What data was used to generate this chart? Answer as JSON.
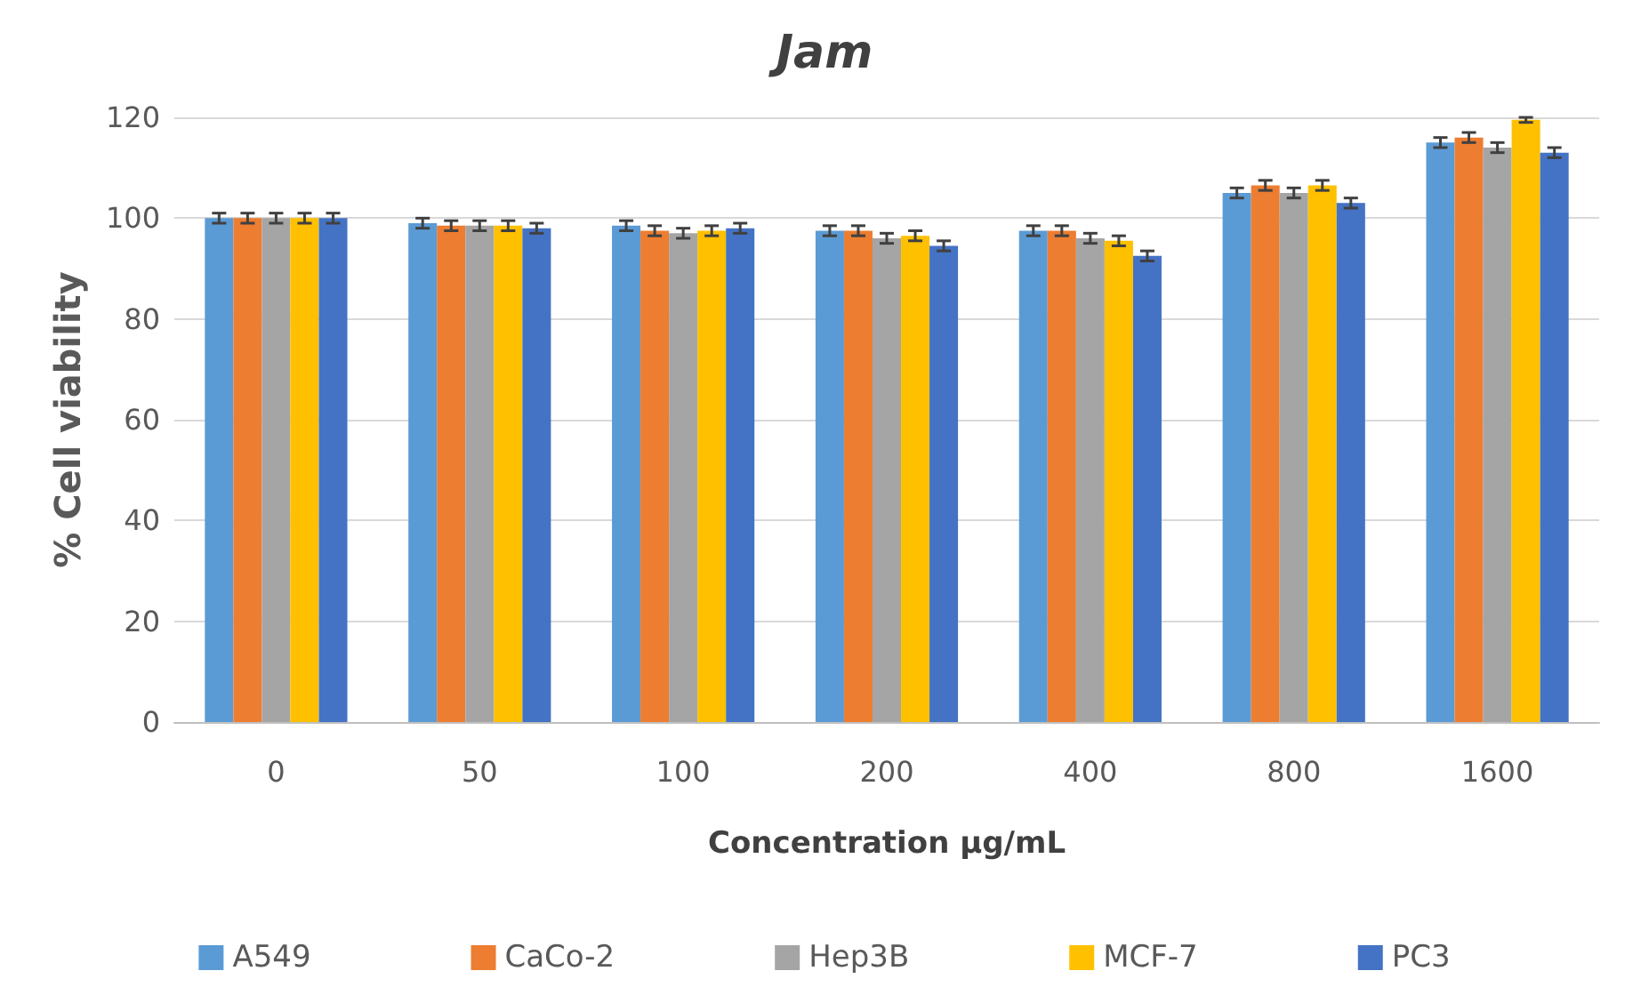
{
  "chart_data": {
    "type": "bar",
    "title": "Jam",
    "xlabel": "Concentration µg/mL",
    "ylabel": "% Cell viability",
    "categories": [
      "0",
      "50",
      "100",
      "200",
      "400",
      "800",
      "1600"
    ],
    "series": [
      {
        "name": "A549",
        "color": "#5b9bd5",
        "values": [
          100,
          99,
          98.5,
          97.5,
          97.5,
          105,
          115
        ],
        "errors": [
          1,
          1,
          1,
          1,
          1,
          1,
          1
        ]
      },
      {
        "name": "CaCo-2",
        "color": "#ed7d31",
        "values": [
          100,
          98.5,
          97.5,
          97.5,
          97.5,
          106.5,
          116
        ],
        "errors": [
          1,
          1,
          1,
          1,
          1,
          1,
          1
        ]
      },
      {
        "name": "Hep3B",
        "color": "#a5a5a5",
        "values": [
          100,
          98.5,
          97,
          96,
          96,
          105,
          114
        ],
        "errors": [
          1,
          1,
          1,
          1,
          1,
          1,
          1
        ]
      },
      {
        "name": "MCF-7",
        "color": "#ffc000",
        "values": [
          100,
          98.5,
          97.5,
          96.5,
          95.5,
          106.5,
          119.5
        ],
        "errors": [
          1,
          1,
          1,
          1,
          1,
          1,
          0.5
        ]
      },
      {
        "name": "PC3",
        "color": "#4472c4",
        "values": [
          100,
          98,
          98,
          94.5,
          92.5,
          103,
          113
        ],
        "errors": [
          1,
          1,
          1,
          1,
          1,
          1,
          1
        ]
      }
    ],
    "ylim": [
      0,
      120
    ],
    "yticks": [
      0,
      20,
      40,
      60,
      80,
      100,
      120
    ],
    "grid": "y",
    "legend": "bottom"
  }
}
